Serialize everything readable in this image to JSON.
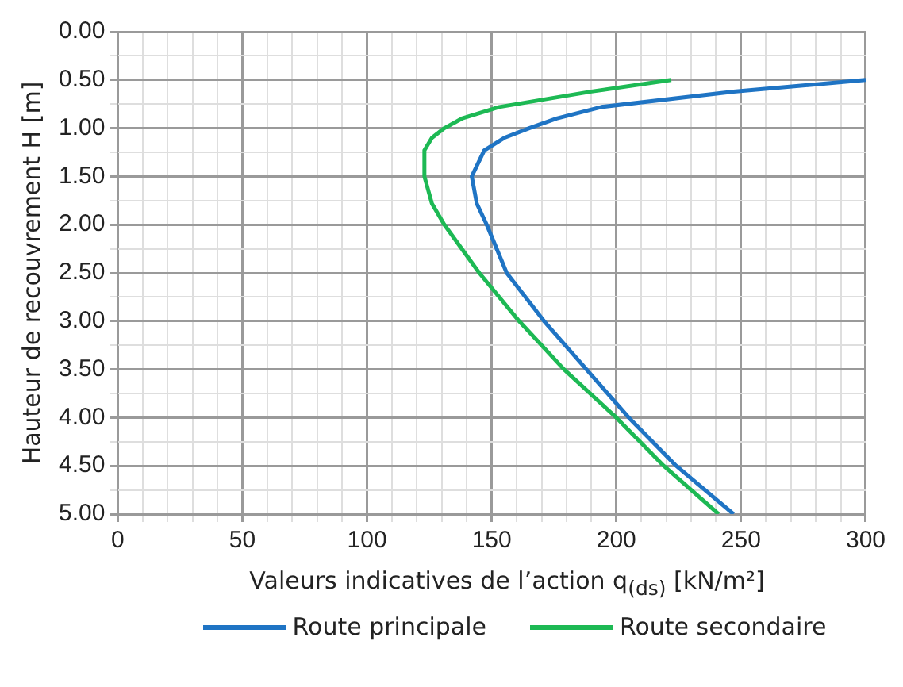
{
  "chart_data": {
    "type": "line",
    "xlabel": "Valeurs indicatives de l’action q$_{(ds)}$ [kN/m²]",
    "ylabel": "Hauteur de recouvrement H [m]",
    "series": [
      {
        "name": "Route principale",
        "color": "#1f74c4",
        "x": [
          300,
          274,
          247,
          194,
          176,
          165,
          155,
          147,
          142,
          144,
          148,
          156,
          171,
          188,
          205,
          224,
          247
        ],
        "values": [
          0.5,
          0.56,
          0.62,
          0.78,
          0.9,
          1.0,
          1.1,
          1.23,
          1.5,
          1.78,
          2.0,
          2.5,
          3.0,
          3.5,
          4.0,
          4.5,
          5.0
        ]
      },
      {
        "name": "Route secondaire",
        "color": "#1db954",
        "x": [
          222,
          190,
          153,
          138,
          131,
          126,
          123,
          123,
          126,
          131,
          145,
          161,
          179,
          200,
          219,
          241
        ],
        "values": [
          0.5,
          0.62,
          0.78,
          0.9,
          1.0,
          1.1,
          1.23,
          1.5,
          1.78,
          2.0,
          2.5,
          3.0,
          3.5,
          4.0,
          4.5,
          5.0
        ]
      }
    ],
    "xlim": [
      0,
      300
    ],
    "xticks": [
      0,
      {
        "value": 10,
        "label": null
      },
      {
        "value": 20,
        "label": null
      },
      {
        "value": 30,
        "label": null
      },
      {
        "value": 40,
        "label": null
      },
      50,
      {
        "value": 60,
        "label": null
      },
      {
        "value": 70,
        "label": null
      },
      {
        "value": 80,
        "label": null
      },
      {
        "value": 90,
        "label": null
      },
      100,
      {
        "value": 110,
        "label": null
      },
      {
        "value": 120,
        "label": null
      },
      {
        "value": 130,
        "label": null
      },
      {
        "value": 140,
        "label": null
      },
      150,
      {
        "value": 160,
        "label": null
      },
      {
        "value": 170,
        "label": null
      },
      {
        "value": 180,
        "label": null
      },
      {
        "value": 190,
        "label": null
      },
      200,
      {
        "value": 210,
        "label": null
      },
      {
        "value": 220,
        "label": null
      },
      {
        "value": 230,
        "label": null
      },
      {
        "value": 240,
        "label": null
      },
      250,
      {
        "value": 260,
        "label": null
      },
      {
        "value": 270,
        "label": null
      },
      {
        "value": 280,
        "label": null
      },
      {
        "value": 290,
        "label": null
      },
      300
    ],
    "ylim": [
      5,
      0
    ],
    "yticks": [
      {
        "value": 0,
        "label": "0.00"
      },
      {
        "value": 0.25,
        "label": null
      },
      {
        "value": 0.5,
        "label": "0.50"
      },
      {
        "value": 0.75,
        "label": null
      },
      {
        "value": 1,
        "label": "1.00"
      },
      {
        "value": 1.25,
        "label": null
      },
      {
        "value": 1.5,
        "label": "1.50"
      },
      {
        "value": 1.75,
        "label": null
      },
      {
        "value": 2,
        "label": "2.00"
      },
      {
        "value": 2.25,
        "label": null
      },
      {
        "value": 2.5,
        "label": "2.50"
      },
      {
        "value": 2.75,
        "label": null
      },
      {
        "value": 3,
        "label": "3.00"
      },
      {
        "value": 3.25,
        "label": null
      },
      {
        "value": 3.5,
        "label": "3.50"
      },
      {
        "value": 3.75,
        "label": null
      },
      {
        "value": 4,
        "label": "4.00"
      },
      {
        "value": 4.25,
        "label": null
      },
      {
        "value": 4.5,
        "label": "4.50"
      },
      {
        "value": 4.75,
        "label": null
      },
      {
        "value": 5,
        "label": "5.00"
      }
    ],
    "grid": true,
    "legend": "bottom",
    "marker": "none",
    "line_style": "solid"
  }
}
